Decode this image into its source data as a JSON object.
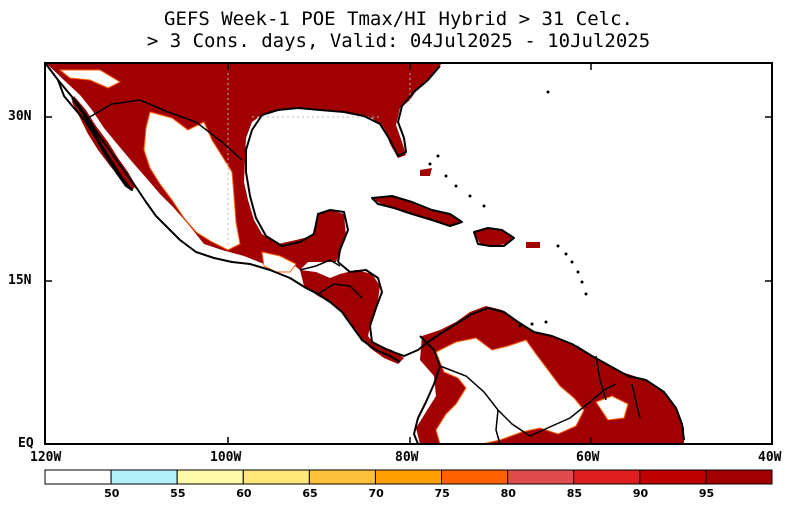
{
  "title": {
    "line1": "GEFS Week-1 POE Tmax/HI Hybrid > 31 Celc.",
    "line2": "> 3 Cons. days, Valid: 04Jul2025 - 10Jul2025"
  },
  "map": {
    "lat_labels": [
      "30N",
      "15N",
      "EQ"
    ],
    "lon_labels": [
      "120W",
      "100W",
      "80W",
      "60W",
      "40W"
    ],
    "extent": {
      "lon": [
        -120,
        -40
      ],
      "lat": [
        0,
        35
      ]
    },
    "fill_color": "#a00000",
    "land_color": "#ffffff"
  },
  "colorbar": {
    "labels": [
      "50",
      "55",
      "60",
      "65",
      "70",
      "75",
      "80",
      "85",
      "90",
      "95"
    ],
    "colors": [
      "#ffffff",
      "#b4f0fa",
      "#fffaaa",
      "#ffe878",
      "#ffc03c",
      "#ffa000",
      "#ff6000",
      "#e14b4b",
      "#dc1e1e",
      "#c00000",
      "#a00000"
    ]
  }
}
